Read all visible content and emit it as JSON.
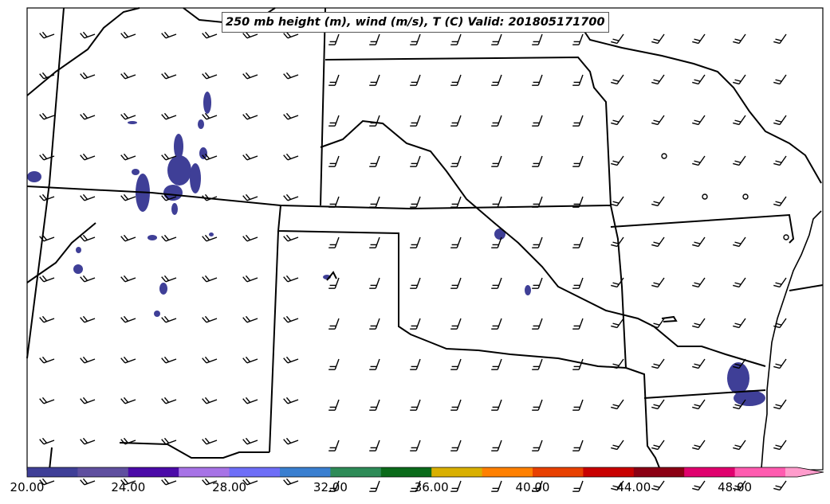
{
  "title": "250 mb height (m), wind (m/s), T (C) Valid: 201805171700",
  "colorbar": {
    "tick_labels": [
      "20.00",
      "24.00",
      "28.00",
      "32.00",
      "36.00",
      "40.00",
      "44.00",
      "48.00"
    ],
    "colors": [
      "#3f3f97",
      "#5f4f9f",
      "#4b0aa8",
      "#a773e6",
      "#6e6ef7",
      "#3a7fd0",
      "#2e8b57",
      "#0b6a1a",
      "#d9b000",
      "#ff8000",
      "#e84000",
      "#c80000",
      "#8b0014",
      "#e0006e",
      "#ff5bb0",
      "#ff9ccc"
    ],
    "extend": "max"
  },
  "shading_color": "#3f3f97",
  "barb_color": "#000000",
  "boundary_color": "#000000"
}
